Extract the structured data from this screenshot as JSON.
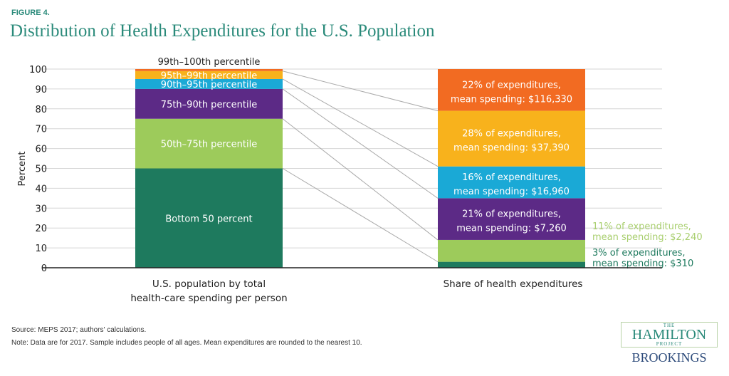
{
  "figure_label": "FIGURE 4.",
  "title": "Distribution of Health Expenditures for the U.S. Population",
  "chart_data": {
    "type": "bar",
    "stacked": true,
    "ylabel": "Percent",
    "ylim": [
      0,
      100
    ],
    "yticks": [
      0,
      10,
      20,
      30,
      40,
      50,
      60,
      70,
      80,
      90,
      100
    ],
    "grid": true,
    "categories": [
      "U.S. population by total health-care spending per person",
      "Share of health expenditures"
    ],
    "category_lines": [
      [
        "U.S. population by total",
        "health-care spending per person"
      ],
      [
        "Share of health expenditures"
      ]
    ],
    "segments": [
      {
        "group": "Bottom 50 percent",
        "color": "#1e7a5e",
        "population": 50,
        "expenditure": 3,
        "label_lines": [
          "3% of expenditures,",
          "mean spending: $310"
        ],
        "label_outside": true,
        "label_color": "#1e7a5e"
      },
      {
        "group": "50th–75th percentile",
        "color": "#9dcb5b",
        "population": 25,
        "expenditure": 11,
        "label_lines": [
          "11% of expenditures,",
          "mean spending: $2,240"
        ],
        "label_outside": true,
        "label_color": "#a9cf6f"
      },
      {
        "group": "75th–90th percentile",
        "color": "#5c2a86",
        "population": 15,
        "expenditure": 21,
        "label_lines": [
          "21% of expenditures,",
          "mean spending: $7,260"
        ]
      },
      {
        "group": "90th–95th percentile",
        "color": "#1aa9d6",
        "population": 5,
        "expenditure": 16,
        "label_lines": [
          "16% of expenditures,",
          "mean spending: $16,960"
        ]
      },
      {
        "group": "95th–99th percentile",
        "color": "#f8b21c",
        "population": 4,
        "expenditure": 28,
        "label_lines": [
          "28% of expenditures,",
          "mean spending: $37,390"
        ]
      },
      {
        "group": "99th–100th percentile",
        "color": "#f26b22",
        "population": 1,
        "expenditure": 22,
        "label_lines": [
          "22% of expenditures,",
          "mean spending: $116,330"
        ]
      }
    ]
  },
  "source": "Source: MEPS 2017; authors' calculations.",
  "note": "Note: Data are for 2017. Sample includes people of all ages. Mean expenditures are rounded to the nearest 10.",
  "logo": {
    "the": "THE",
    "hamilton": "HAMILTON",
    "project": "PROJECT",
    "brookings": "BROOKINGS"
  }
}
